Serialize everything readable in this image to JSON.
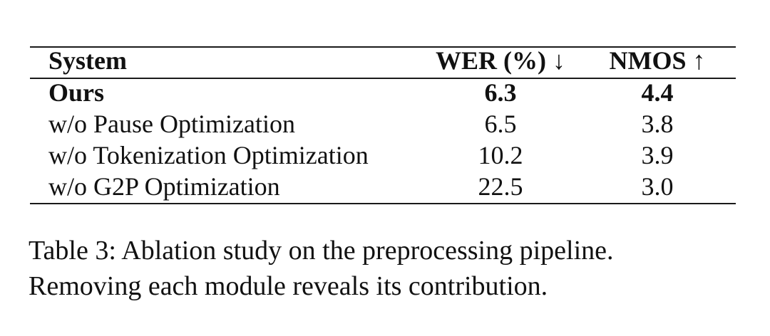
{
  "table": {
    "headers": {
      "system": "System",
      "wer": "WER (%) ↓",
      "nmos": "NMOS ↑"
    },
    "rows": [
      {
        "system": "Ours",
        "wer": "6.3",
        "nmos": "4.4",
        "bold": true
      },
      {
        "system": "w/o Pause Optimization",
        "wer": "6.5",
        "nmos": "3.8",
        "bold": false
      },
      {
        "system": "w/o Tokenization Optimization",
        "wer": "10.2",
        "nmos": "3.9",
        "bold": false
      },
      {
        "system": "w/o G2P Optimization",
        "wer": "22.5",
        "nmos": "3.0",
        "bold": false
      }
    ]
  },
  "caption": {
    "line1": "Table 3: Ablation study on the preprocessing pipeline.",
    "line2": "Removing each module reveals its contribution."
  }
}
